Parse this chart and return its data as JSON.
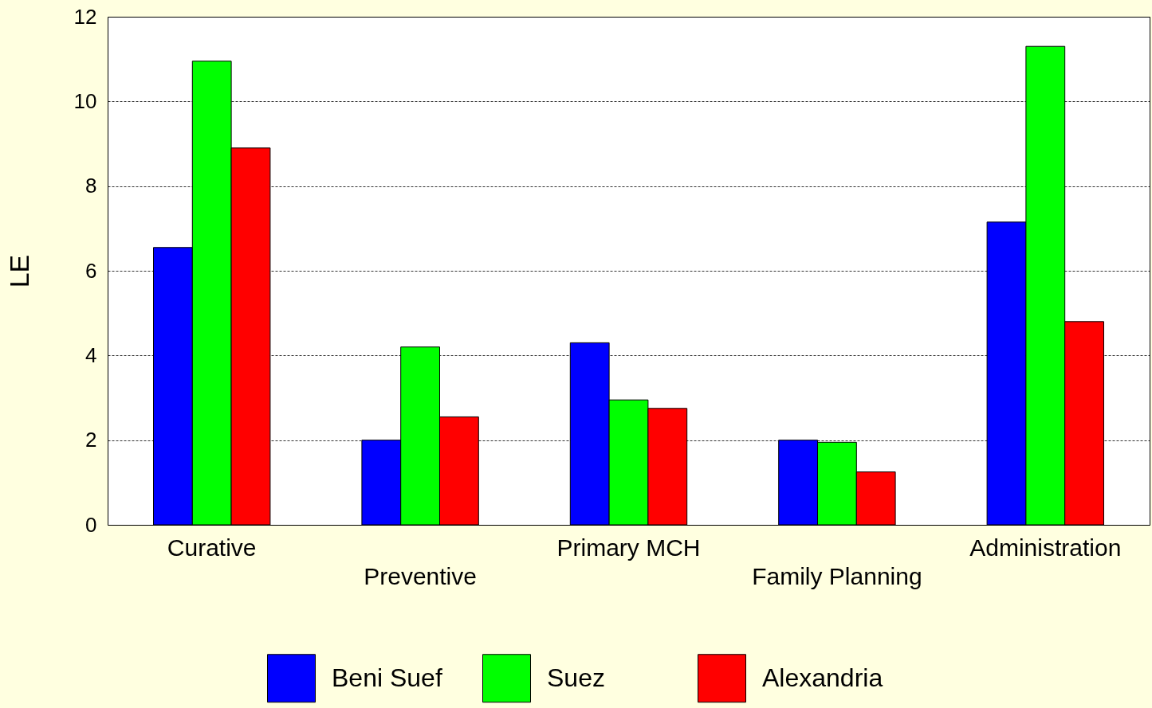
{
  "chart_data": {
    "type": "bar",
    "ylabel": "LE",
    "categories": [
      "Curative",
      "Preventive",
      "Primary MCH",
      "Family Planning",
      "Administration"
    ],
    "series": [
      {
        "name": "Beni Suef",
        "color": "#0000ff",
        "values": [
          6.55,
          2.0,
          4.3,
          2.0,
          7.15
        ]
      },
      {
        "name": "Suez",
        "color": "#00ff00",
        "values": [
          10.95,
          4.2,
          2.95,
          1.95,
          11.3
        ]
      },
      {
        "name": "Alexandria",
        "color": "#ff0000",
        "values": [
          8.9,
          2.55,
          2.75,
          1.25,
          4.8
        ]
      }
    ],
    "ylim": [
      0,
      12
    ],
    "yticks": [
      0,
      2,
      4,
      6,
      8,
      10,
      12
    ],
    "grid": "y",
    "legend": "bottom"
  }
}
